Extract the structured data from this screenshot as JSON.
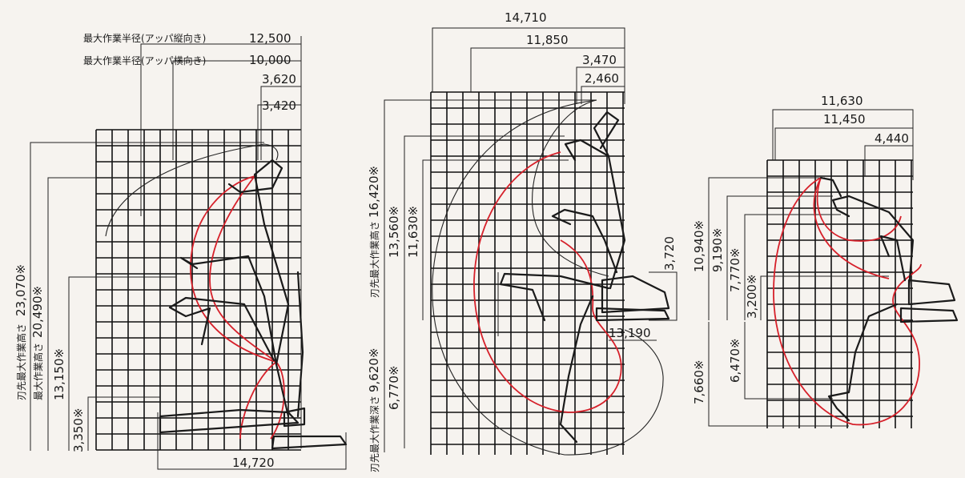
{
  "colors": {
    "background": "#f6f3ef",
    "grid": "#111111",
    "reach_curve": "#d6202a"
  },
  "diagrams": [
    {
      "id": "left",
      "top_dims": [
        "12,500",
        "10,000",
        "3,620",
        "3,420"
      ],
      "top_dim_labels": [
        "最大作業半径(アッパ縦向き)",
        "最大作業半径(アッパ横向き)"
      ],
      "left_dims": [
        "23,070※",
        "20,490※",
        "13,150※",
        "3,350※"
      ],
      "left_dim_labels": [
        "刃先最大作業高さ",
        "最大作業高さ"
      ],
      "bottom_dim": "14,720"
    },
    {
      "id": "middle",
      "top_dims": [
        "14,710",
        "11,850",
        "3,470",
        "2,460"
      ],
      "left_dims": [
        "16,420※",
        "13,560※",
        "11,630※",
        "9,620※",
        "6,770※"
      ],
      "left_dim_labels": [
        "刃先最大作業高さ",
        "刃先最大作業深さ"
      ],
      "right_dim": "3,720",
      "inner_dim": "13,190"
    },
    {
      "id": "right",
      "top_dims": [
        "11,630",
        "11,450",
        "4,440"
      ],
      "left_dims": [
        "10,940※",
        "9,190※",
        "7,770※",
        "3,200※",
        "7,660※",
        "6,470※"
      ]
    }
  ]
}
